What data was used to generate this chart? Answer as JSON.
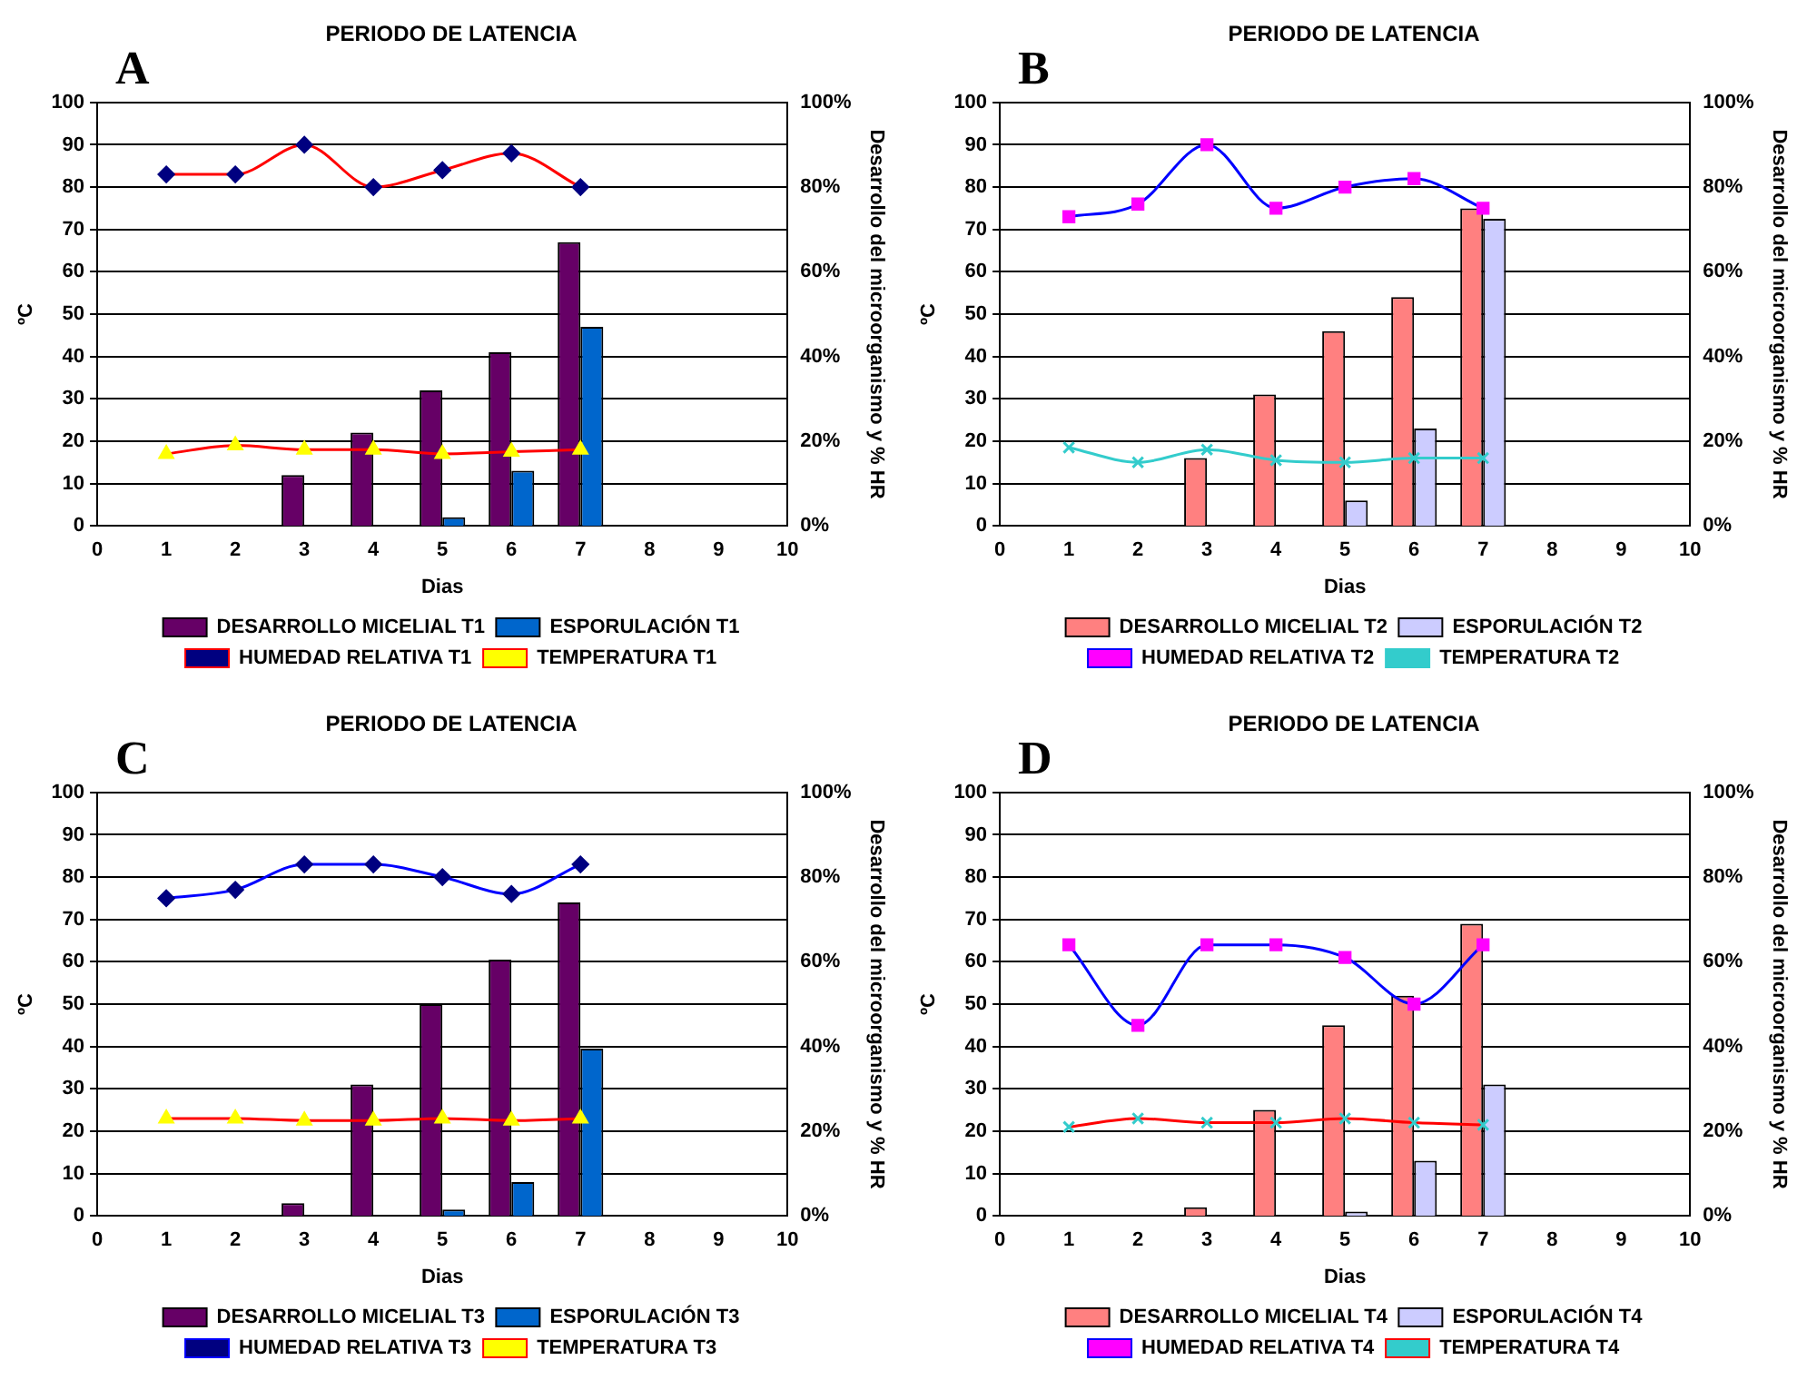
{
  "chart_data": [
    {
      "type": "bar",
      "title": "PERIODO DE LATENCIA",
      "xlabel": "Dias",
      "ylabel": "ºC",
      "y2label": "Desarrollo del microorganismo y % HR",
      "annotations": [
        "A"
      ],
      "xlim": [
        0,
        10
      ],
      "xticks": [
        0,
        1,
        2,
        3,
        4,
        5,
        6,
        7,
        8,
        9,
        10
      ],
      "ylim": [
        0,
        100
      ],
      "yticks": [
        0,
        10,
        20,
        30,
        40,
        50,
        60,
        70,
        80,
        90,
        100
      ],
      "y2lim": [
        0,
        100
      ],
      "y2ticks": [
        {
          "value": 0,
          "label": "0%"
        },
        {
          "value": 20,
          "label": "20%"
        },
        {
          "value": 40,
          "label": "40%"
        },
        {
          "value": 60,
          "label": "60%"
        },
        {
          "value": 80,
          "label": "80%"
        },
        {
          "value": 100,
          "label": "100%"
        }
      ],
      "grid": "y",
      "legend": "bottom",
      "series": [
        {
          "name": "DESARROLLO MICELIAL T1",
          "axis": "y2",
          "color": "#660066",
          "x": [
            3,
            4,
            5,
            6,
            7
          ],
          "values": [
            12,
            22,
            32,
            41,
            67
          ]
        },
        {
          "name": "ESPORULACIÓN T1",
          "axis": "y2",
          "color": "#0066cc",
          "x": [
            3,
            4,
            5,
            6,
            7
          ],
          "values": [
            0,
            0,
            2,
            13,
            47
          ]
        },
        {
          "name": "HUMEDAD RELATIVA T1",
          "type": "line",
          "axis": "y2",
          "color": "#ff0000",
          "colors": [
            "#000080",
            "#000080",
            "#000080",
            "#000080",
            "#000080",
            "#000080",
            "#000080"
          ],
          "marker": "diamond",
          "x": [
            1,
            2,
            3,
            4,
            5,
            6,
            7
          ],
          "values": [
            83,
            83,
            90,
            80,
            84,
            88,
            80
          ]
        },
        {
          "name": "TEMPERATURA T1",
          "type": "line",
          "color": "#ff0000",
          "colors": [
            "#ffff00",
            "#ffff00",
            "#ffff00",
            "#ffff00",
            "#ffff00",
            "#ffff00",
            "#ffff00"
          ],
          "marker": "triangle",
          "x": [
            1,
            2,
            3,
            4,
            5,
            6,
            7
          ],
          "values": [
            17,
            19,
            18,
            18,
            17,
            17.5,
            18
          ]
        }
      ]
    },
    {
      "type": "bar",
      "title": "PERIODO DE LATENCIA",
      "xlabel": "Dias",
      "ylabel": "ºC",
      "y2label": "Desarrollo del microorganismo y % HR",
      "annotations": [
        "B"
      ],
      "xlim": [
        0,
        10
      ],
      "xticks": [
        0,
        1,
        2,
        3,
        4,
        5,
        6,
        7,
        8,
        9,
        10
      ],
      "ylim": [
        0,
        100
      ],
      "yticks": [
        0,
        10,
        20,
        30,
        40,
        50,
        60,
        70,
        80,
        90,
        100
      ],
      "y2lim": [
        0,
        100
      ],
      "y2ticks": [
        {
          "value": 0,
          "label": "0%"
        },
        {
          "value": 20,
          "label": "20%"
        },
        {
          "value": 40,
          "label": "40%"
        },
        {
          "value": 60,
          "label": "60%"
        },
        {
          "value": 80,
          "label": "80%"
        },
        {
          "value": 100,
          "label": "100%"
        }
      ],
      "grid": "y",
      "legend": "bottom",
      "series": [
        {
          "name": "DESARROLLO MICELIAL T2",
          "axis": "y2",
          "color": "#ff8080",
          "x": [
            3,
            4,
            5,
            6,
            7
          ],
          "values": [
            16,
            31,
            46,
            54,
            75
          ]
        },
        {
          "name": "ESPORULACIÓN T2",
          "axis": "y2",
          "color": "#ccccff",
          "x": [
            3,
            4,
            5,
            6,
            7
          ],
          "values": [
            0,
            0,
            6,
            23,
            72.5
          ]
        },
        {
          "name": "HUMEDAD RELATIVA T2",
          "type": "line",
          "axis": "y2",
          "color": "#0000ff",
          "colors": [
            "#ff00ff",
            "#ff00ff",
            "#ff00ff",
            "#ff00ff",
            "#ff00ff",
            "#ff00ff",
            "#ff00ff"
          ],
          "marker": "square",
          "x": [
            1,
            2,
            3,
            4,
            5,
            6,
            7
          ],
          "values": [
            73,
            76,
            90,
            75,
            80,
            82,
            75
          ]
        },
        {
          "name": "TEMPERATURA T2",
          "type": "line",
          "color": "#33cccc",
          "marker": "cross",
          "x": [
            1,
            2,
            3,
            4,
            5,
            6,
            7
          ],
          "values": [
            18.5,
            15,
            18,
            15.5,
            15,
            16,
            16
          ]
        }
      ]
    },
    {
      "type": "bar",
      "title": "PERIODO DE LATENCIA",
      "xlabel": "Dias",
      "ylabel": "ºC",
      "y2label": "Desarrollo del microorganismo y % HR",
      "annotations": [
        "C"
      ],
      "xlim": [
        0,
        10
      ],
      "xticks": [
        0,
        1,
        2,
        3,
        4,
        5,
        6,
        7,
        8,
        9,
        10
      ],
      "ylim": [
        0,
        100
      ],
      "yticks": [
        0,
        10,
        20,
        30,
        40,
        50,
        60,
        70,
        80,
        90,
        100
      ],
      "y2lim": [
        0,
        100
      ],
      "y2ticks": [
        {
          "value": 0,
          "label": "0%"
        },
        {
          "value": 20,
          "label": "20%"
        },
        {
          "value": 40,
          "label": "40%"
        },
        {
          "value": 60,
          "label": "60%"
        },
        {
          "value": 80,
          "label": "80%"
        },
        {
          "value": 100,
          "label": "100%"
        }
      ],
      "grid": "y",
      "legend": "bottom",
      "series": [
        {
          "name": "DESARROLLO MICELIAL T3",
          "axis": "y2",
          "color": "#660066",
          "x": [
            3,
            4,
            5,
            6,
            7
          ],
          "values": [
            3,
            31,
            50,
            60.5,
            74
          ]
        },
        {
          "name": "ESPORULACIÓN T3",
          "axis": "y2",
          "color": "#0066cc",
          "x": [
            3,
            4,
            5,
            6,
            7
          ],
          "values": [
            0,
            0,
            1.5,
            8,
            39.5
          ]
        },
        {
          "name": "HUMEDAD RELATIVA T3",
          "type": "line",
          "axis": "y2",
          "color": "#0000ff",
          "colors": [
            "#000080",
            "#000080",
            "#000080",
            "#000080",
            "#000080",
            "#000080",
            "#000080"
          ],
          "marker": "diamond",
          "x": [
            1,
            2,
            3,
            4,
            5,
            6,
            7
          ],
          "values": [
            75,
            77,
            83,
            83,
            80,
            76,
            83
          ]
        },
        {
          "name": "TEMPERATURA T3",
          "type": "line",
          "color": "#ff0000",
          "colors": [
            "#ffff00",
            "#ffff00",
            "#ffff00",
            "#ffff00",
            "#ffff00",
            "#ffff00",
            "#ffff00"
          ],
          "marker": "triangle",
          "x": [
            1,
            2,
            3,
            4,
            5,
            6,
            7
          ],
          "values": [
            23,
            23,
            22.5,
            22.5,
            23,
            22.5,
            23
          ]
        }
      ]
    },
    {
      "type": "bar",
      "title": "PERIODO DE LATENCIA",
      "xlabel": "Dias",
      "ylabel": "ºC",
      "y2label": "Desarrollo del microorganismo y % HR",
      "annotations": [
        "D"
      ],
      "xlim": [
        0,
        10
      ],
      "xticks": [
        0,
        1,
        2,
        3,
        4,
        5,
        6,
        7,
        8,
        9,
        10
      ],
      "ylim": [
        0,
        100
      ],
      "yticks": [
        0,
        10,
        20,
        30,
        40,
        50,
        60,
        70,
        80,
        90,
        100
      ],
      "y2lim": [
        0,
        100
      ],
      "y2ticks": [
        {
          "value": 0,
          "label": "0%"
        },
        {
          "value": 20,
          "label": "20%"
        },
        {
          "value": 40,
          "label": "40%"
        },
        {
          "value": 60,
          "label": "60%"
        },
        {
          "value": 80,
          "label": "80%"
        },
        {
          "value": 100,
          "label": "100%"
        }
      ],
      "grid": "y",
      "legend": "bottom",
      "series": [
        {
          "name": "DESARROLLO MICELIAL T4",
          "axis": "y2",
          "color": "#ff8080",
          "x": [
            3,
            4,
            5,
            6,
            7
          ],
          "values": [
            2,
            25,
            45,
            52,
            69
          ]
        },
        {
          "name": "ESPORULACIÓN T4",
          "axis": "y2",
          "color": "#ccccff",
          "x": [
            3,
            4,
            5,
            6,
            7
          ],
          "values": [
            0,
            0,
            1,
            13,
            31
          ]
        },
        {
          "name": "HUMEDAD RELATIVA T4",
          "type": "line",
          "axis": "y2",
          "color": "#0000ff",
          "colors": [
            "#ff00ff",
            "#ff00ff",
            "#ff00ff",
            "#ff00ff",
            "#ff00ff",
            "#ff00ff",
            "#ff00ff"
          ],
          "marker": "square",
          "x": [
            1,
            2,
            3,
            4,
            5,
            6,
            7
          ],
          "values": [
            64,
            45,
            64,
            64,
            61,
            50,
            64
          ]
        },
        {
          "name": "TEMPERATURA T4",
          "type": "line",
          "color": "#ff0000",
          "colors": [
            "#33cccc",
            "#33cccc",
            "#33cccc",
            "#33cccc",
            "#33cccc",
            "#33cccc",
            "#33cccc"
          ],
          "marker": "cross",
          "x": [
            1,
            2,
            3,
            4,
            5,
            6,
            7
          ],
          "values": [
            21,
            23,
            22,
            22,
            23,
            22,
            21.5
          ]
        }
      ]
    }
  ]
}
